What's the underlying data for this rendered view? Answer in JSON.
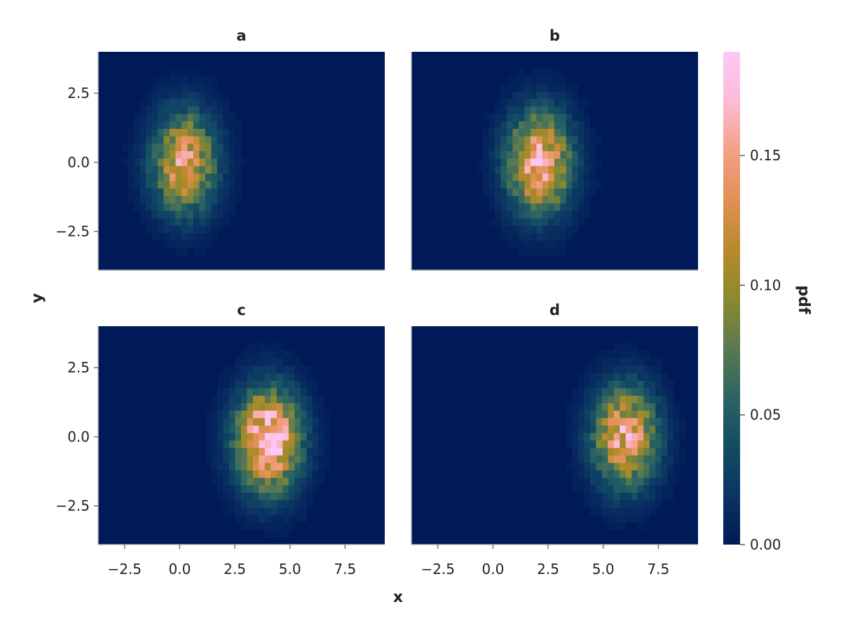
{
  "chart_data": {
    "type": "heatmap",
    "layout": "2x2 facets with shared x and y axes and one shared colorbar on the right",
    "xlabel": "x",
    "ylabel": "y",
    "colorbar": {
      "label": "pdf",
      "range": [
        0.0,
        0.19
      ],
      "ticks": [
        0.0,
        0.05,
        0.1,
        0.15
      ],
      "tick_labels": [
        "0.00",
        "0.05",
        "0.10",
        "0.15"
      ],
      "colormap": [
        "#001a57",
        "#0b3463",
        "#134c64",
        "#2c6462",
        "#5a7950",
        "#8a8a30",
        "#b98a2a",
        "#e09055",
        "#f4a086",
        "#fcbcd8",
        "#fdc7f6"
      ]
    },
    "xlim": [
      -3.7,
      9.3
    ],
    "ylim": [
      -3.9,
      4.0
    ],
    "xticks": [
      -2.5,
      0.0,
      2.5,
      5.0,
      7.5
    ],
    "xtick_labels": [
      "−2.5",
      "0.0",
      "2.5",
      "5.0",
      "7.5"
    ],
    "yticks": [
      -2.5,
      0.0,
      2.5
    ],
    "ytick_labels": [
      "−2.5",
      "0.0",
      "2.5"
    ],
    "grid": false,
    "panels": [
      {
        "title": "a",
        "center_x": 0.2,
        "center_y": 0.0,
        "peak_pdf": 0.14,
        "spread_x": 0.8,
        "spread_y": 1.0
      },
      {
        "title": "b",
        "center_x": 2.1,
        "center_y": 0.0,
        "peak_pdf": 0.16,
        "spread_x": 0.8,
        "spread_y": 1.0
      },
      {
        "title": "c",
        "center_x": 4.0,
        "center_y": -0.1,
        "peak_pdf": 0.19,
        "spread_x": 0.8,
        "spread_y": 1.0
      },
      {
        "title": "d",
        "center_x": 6.0,
        "center_y": 0.0,
        "peak_pdf": 0.15,
        "spread_x": 0.8,
        "spread_y": 1.0
      }
    ]
  }
}
